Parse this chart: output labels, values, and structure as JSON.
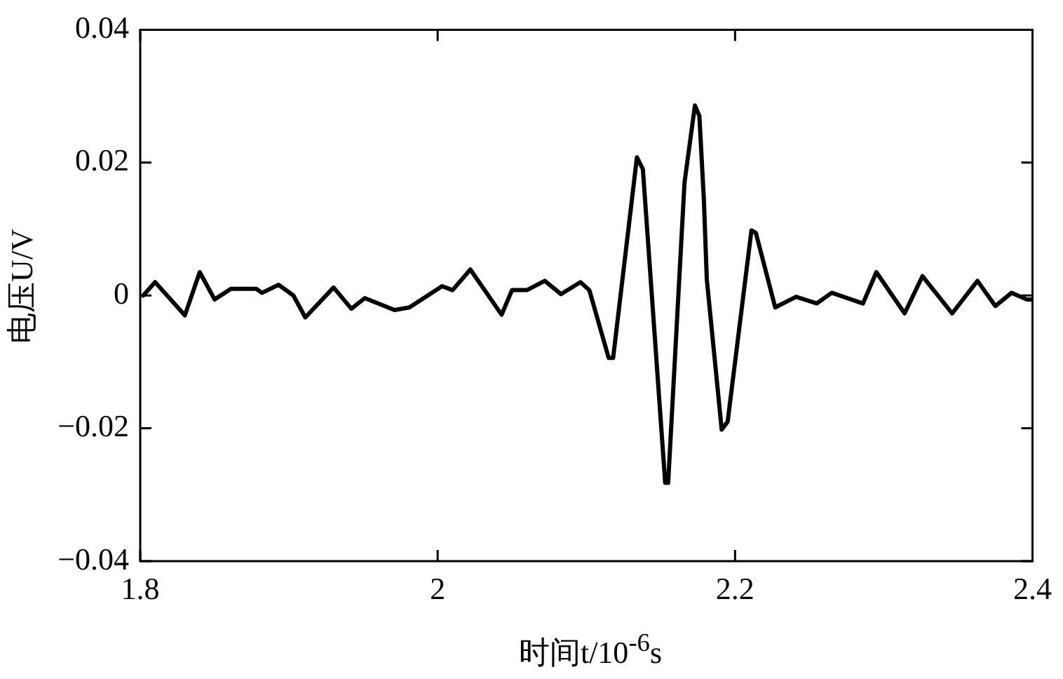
{
  "chart_data": {
    "type": "line",
    "xlabel": "时间t/10$^{-6}$s",
    "ylabel": "电压U/V",
    "xlim": [
      1.8,
      2.4
    ],
    "xticks": [
      1.8,
      2,
      2.2,
      2.4
    ],
    "ylim": [
      -0.04,
      0.04
    ],
    "yticks": [
      -0.04,
      -0.02,
      0,
      0.02,
      0.04
    ],
    "grid": false,
    "legend": false,
    "marker": "none",
    "line_style": "solid",
    "series": [
      {
        "color": "#000000",
        "x": [
          1.802,
          1.81,
          1.83,
          1.84,
          1.85,
          1.861,
          1.878,
          1.882,
          1.893,
          1.903,
          1.911,
          1.93,
          1.942,
          1.951,
          1.971,
          1.981,
          2.003,
          2.01,
          2.022,
          2.043,
          2.05,
          2.06,
          2.072,
          2.083,
          2.096,
          2.102,
          2.115,
          2.118,
          2.134,
          2.138,
          2.153,
          2.155,
          2.166,
          2.173,
          2.176,
          2.179,
          2.181,
          2.191,
          2.195,
          2.211,
          2.214,
          2.227,
          2.241,
          2.255,
          2.265,
          2.286,
          2.295,
          2.314,
          2.326,
          2.346,
          2.363,
          2.375,
          2.386,
          2.396,
          2.4
        ],
        "values": [
          0,
          0.002,
          -0.003,
          0.0035,
          -0.0006,
          0.001,
          0.001,
          0.0004,
          0.0016,
          0,
          -0.0033,
          0.0012,
          -0.002,
          -0.0004,
          -0.0022,
          -0.0018,
          0.0014,
          0.0008,
          0.0039,
          -0.0029,
          0.0008,
          0.0008,
          0.0022,
          0.0002,
          0.002,
          0.0008,
          -0.0094,
          -0.0094,
          0.0208,
          0.019,
          -0.0282,
          -0.0282,
          0.017,
          0.0286,
          0.027,
          0.0145,
          0.0024,
          -0.0202,
          -0.019,
          0.0098,
          0.0094,
          -0.0018,
          -0.0002,
          -0.0012,
          0.0004,
          -0.0012,
          0.0035,
          -0.0027,
          0.0029,
          -0.0027,
          0.0022,
          -0.0016,
          0.0004,
          -0.0006,
          -0.0006
        ]
      }
    ]
  }
}
